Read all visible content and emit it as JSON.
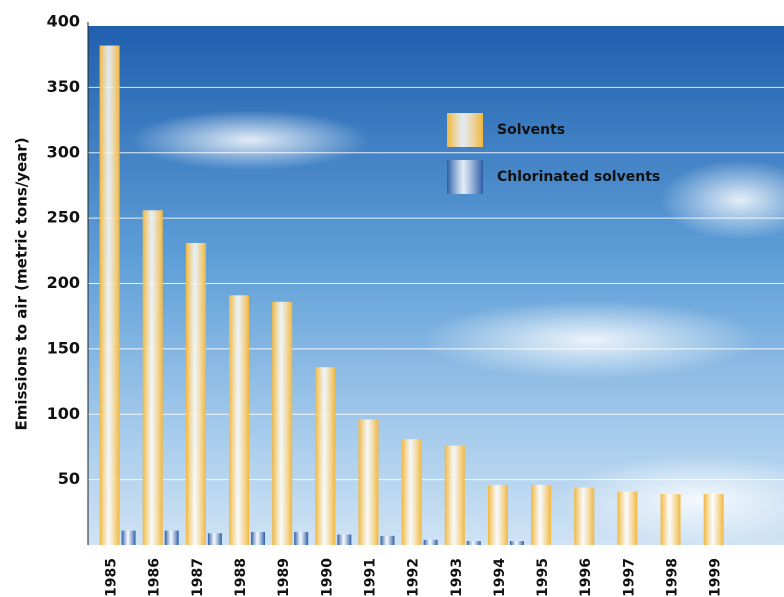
{
  "chart_data": {
    "type": "bar",
    "y_label": "Emissions to air (metric tons/year)",
    "categories": [
      "1985",
      "1986",
      "1987",
      "1988",
      "1989",
      "1990",
      "1991",
      "1992",
      "1993",
      "1994",
      "1995",
      "1996",
      "1997",
      "1998",
      "1999"
    ],
    "series": [
      {
        "name": "Solvents",
        "color": "#f2b73c",
        "values": [
          382,
          256,
          231,
          191,
          186,
          136,
          96,
          81,
          76,
          46,
          46,
          44,
          41,
          39,
          39
        ]
      },
      {
        "name": "Chlorinated solvents",
        "color": "#2a5ea8",
        "values": [
          11,
          11,
          9,
          10,
          10,
          8,
          7,
          4,
          3,
          3,
          null,
          null,
          null,
          null,
          null
        ]
      }
    ],
    "ylim": [
      0,
      400
    ],
    "yticks": [
      50,
      100,
      150,
      200,
      250,
      300,
      350,
      400
    ],
    "grid": true,
    "legend": "top-right"
  }
}
